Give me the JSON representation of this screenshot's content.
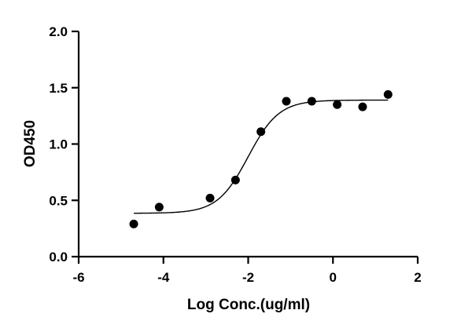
{
  "chart_data": {
    "type": "scatter",
    "title": "",
    "xlabel": "Log Conc.(ug/ml)",
    "ylabel": "OD450",
    "xlim": [
      -6,
      2
    ],
    "ylim": [
      0,
      2
    ],
    "x_ticks": [
      -6,
      -4,
      -2,
      0,
      2
    ],
    "y_ticks": [
      0.0,
      0.5,
      1.0,
      1.5,
      2.0
    ],
    "x_tick_labels": [
      "-6",
      "-4",
      "-2",
      "0",
      "2"
    ],
    "y_tick_labels": [
      "0.0",
      "0.5",
      "1.0",
      "1.5",
      "2.0"
    ],
    "grid": false,
    "series": [
      {
        "points": [
          {
            "x": -4.7,
            "y": 0.29
          },
          {
            "x": -4.1,
            "y": 0.44
          },
          {
            "x": -2.9,
            "y": 0.52
          },
          {
            "x": -2.3,
            "y": 0.68
          },
          {
            "x": -1.7,
            "y": 1.11
          },
          {
            "x": -1.1,
            "y": 1.38
          },
          {
            "x": -0.5,
            "y": 1.38
          },
          {
            "x": 0.1,
            "y": 1.35
          },
          {
            "x": 0.7,
            "y": 1.33
          },
          {
            "x": 1.3,
            "y": 1.44
          }
        ],
        "color": "#000000"
      }
    ],
    "fit_curve": {
      "model": "four-parameter logistic",
      "bottom": 0.385,
      "top": 1.39,
      "log_ec50": -2.0,
      "hill_slope": 1.2,
      "x_range": [
        -4.7,
        1.3
      ],
      "color": "#000000"
    }
  }
}
